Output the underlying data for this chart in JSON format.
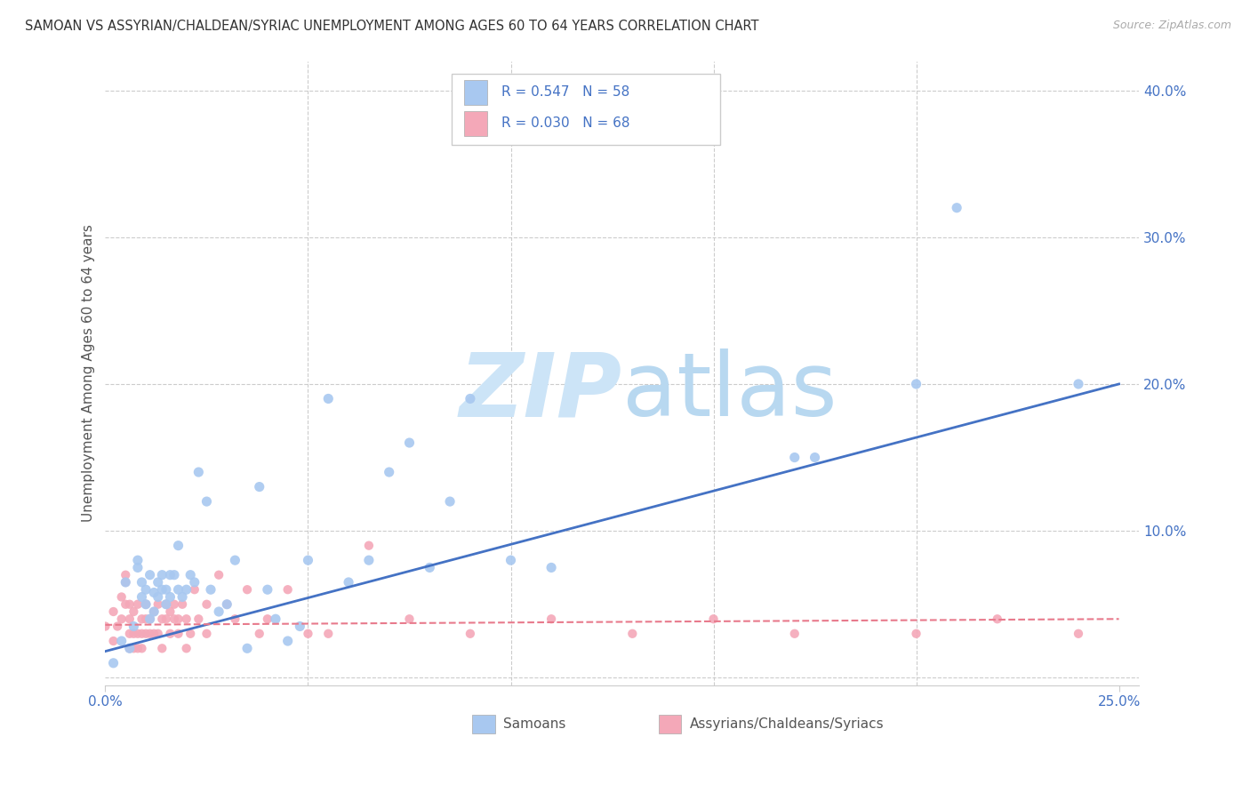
{
  "title": "SAMOAN VS ASSYRIAN/CHALDEAN/SYRIAC UNEMPLOYMENT AMONG AGES 60 TO 64 YEARS CORRELATION CHART",
  "source": "Source: ZipAtlas.com",
  "ylabel": "Unemployment Among Ages 60 to 64 years",
  "R_samoan": 0.547,
  "N_samoan": 58,
  "R_assyrian": 0.03,
  "N_assyrian": 68,
  "color_samoan": "#a8c8f0",
  "color_assyrian": "#f4a8b8",
  "color_samoan_line": "#4472c4",
  "color_assyrian_line": "#e87a8c",
  "color_text_blue": "#4472c4",
  "watermark_color": "#ddeeff",
  "samoan_x": [
    0.002,
    0.004,
    0.005,
    0.006,
    0.007,
    0.008,
    0.008,
    0.009,
    0.009,
    0.01,
    0.01,
    0.011,
    0.011,
    0.012,
    0.012,
    0.013,
    0.013,
    0.014,
    0.014,
    0.015,
    0.015,
    0.016,
    0.016,
    0.017,
    0.018,
    0.018,
    0.019,
    0.02,
    0.021,
    0.022,
    0.023,
    0.025,
    0.026,
    0.028,
    0.03,
    0.032,
    0.035,
    0.038,
    0.04,
    0.042,
    0.045,
    0.048,
    0.05,
    0.055,
    0.06,
    0.065,
    0.07,
    0.075,
    0.08,
    0.085,
    0.09,
    0.1,
    0.11,
    0.17,
    0.175,
    0.2,
    0.21,
    0.24
  ],
  "samoan_y": [
    0.01,
    0.025,
    0.065,
    0.02,
    0.035,
    0.075,
    0.08,
    0.055,
    0.065,
    0.06,
    0.05,
    0.07,
    0.04,
    0.058,
    0.045,
    0.055,
    0.065,
    0.07,
    0.06,
    0.06,
    0.05,
    0.07,
    0.055,
    0.07,
    0.06,
    0.09,
    0.055,
    0.06,
    0.07,
    0.065,
    0.14,
    0.12,
    0.06,
    0.045,
    0.05,
    0.08,
    0.02,
    0.13,
    0.06,
    0.04,
    0.025,
    0.035,
    0.08,
    0.19,
    0.065,
    0.08,
    0.14,
    0.16,
    0.075,
    0.12,
    0.19,
    0.08,
    0.075,
    0.15,
    0.15,
    0.2,
    0.32,
    0.2
  ],
  "assyrian_x": [
    0.0,
    0.002,
    0.002,
    0.003,
    0.004,
    0.004,
    0.005,
    0.005,
    0.005,
    0.006,
    0.006,
    0.006,
    0.006,
    0.007,
    0.007,
    0.007,
    0.008,
    0.008,
    0.008,
    0.009,
    0.009,
    0.009,
    0.01,
    0.01,
    0.01,
    0.011,
    0.011,
    0.012,
    0.012,
    0.013,
    0.013,
    0.014,
    0.014,
    0.015,
    0.015,
    0.016,
    0.016,
    0.017,
    0.017,
    0.018,
    0.018,
    0.019,
    0.02,
    0.02,
    0.021,
    0.022,
    0.023,
    0.025,
    0.025,
    0.028,
    0.03,
    0.032,
    0.035,
    0.038,
    0.04,
    0.045,
    0.05,
    0.055,
    0.065,
    0.075,
    0.09,
    0.11,
    0.13,
    0.15,
    0.17,
    0.2,
    0.22,
    0.24
  ],
  "assyrian_y": [
    0.035,
    0.025,
    0.045,
    0.035,
    0.04,
    0.055,
    0.065,
    0.05,
    0.07,
    0.03,
    0.04,
    0.02,
    0.05,
    0.045,
    0.03,
    0.02,
    0.05,
    0.03,
    0.02,
    0.04,
    0.03,
    0.02,
    0.05,
    0.04,
    0.03,
    0.04,
    0.03,
    0.045,
    0.03,
    0.05,
    0.03,
    0.04,
    0.02,
    0.05,
    0.04,
    0.03,
    0.045,
    0.05,
    0.04,
    0.04,
    0.03,
    0.05,
    0.04,
    0.02,
    0.03,
    0.06,
    0.04,
    0.05,
    0.03,
    0.07,
    0.05,
    0.04,
    0.06,
    0.03,
    0.04,
    0.06,
    0.03,
    0.03,
    0.09,
    0.04,
    0.03,
    0.04,
    0.03,
    0.04,
    0.03,
    0.03,
    0.04,
    0.03
  ],
  "blue_line_x": [
    0.0,
    0.25
  ],
  "blue_line_y": [
    0.018,
    0.2
  ],
  "pink_line_x": [
    0.0,
    0.25
  ],
  "pink_line_y": [
    0.036,
    0.04
  ],
  "xlim": [
    0.0,
    0.255
  ],
  "ylim": [
    -0.005,
    0.42
  ],
  "ytick_values": [
    0.0,
    0.1,
    0.2,
    0.3,
    0.4
  ],
  "xtick_values": [
    0.0,
    0.25
  ],
  "grid_color": "#cccccc",
  "background_color": "#ffffff",
  "legend_label_samoan": "Samoans",
  "legend_label_assyrian": "Assyrians/Chaldeans/Syriacs"
}
